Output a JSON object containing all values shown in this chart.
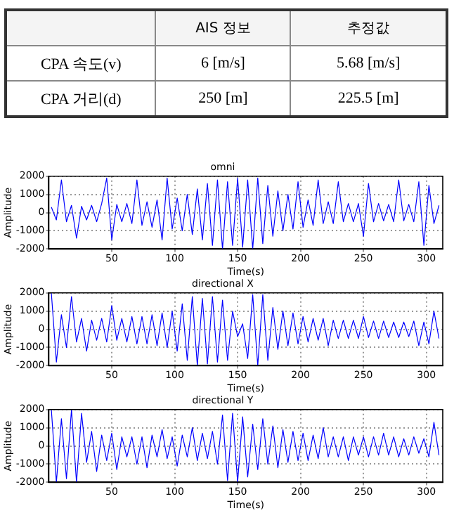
{
  "chart_data": [
    {
      "type": "other",
      "annotations": [
        "AIS 정보",
        "추정값",
        "CPA 속도(v)",
        "6 [m/s]",
        "5.68 [m/s]",
        "CPA 거리(d)",
        "250 [m]",
        "225.5 [m]"
      ]
    },
    {
      "type": "line",
      "title": "omni",
      "xlabel": "Time(s)",
      "ylabel": "Amplitude",
      "xlim": [
        0,
        313
      ],
      "xticks": [
        50,
        100,
        150,
        200,
        250,
        300
      ],
      "ylim": [
        -2000,
        2000
      ],
      "yticks": [
        -2000,
        -1000,
        0,
        1000,
        2000
      ],
      "grid": true,
      "x": [
        2,
        6,
        10,
        14,
        18,
        22,
        26,
        30,
        34,
        38,
        42,
        46,
        50,
        54,
        58,
        62,
        66,
        70,
        74,
        78,
        82,
        86,
        90,
        94,
        98,
        102,
        106,
        110,
        114,
        118,
        122,
        126,
        130,
        134,
        138,
        142,
        146,
        150,
        154,
        158,
        162,
        166,
        170,
        174,
        178,
        182,
        186,
        190,
        194,
        198,
        202,
        206,
        210,
        214,
        218,
        222,
        226,
        230,
        234,
        238,
        242,
        246,
        250,
        254,
        258,
        262,
        266,
        270,
        274,
        278,
        282,
        286,
        290,
        294,
        298,
        302,
        306,
        310
      ],
      "series": [
        {
          "color": "#0000ff",
          "values": [
            300,
            -400,
            1800,
            -500,
            400,
            -1400,
            350,
            -400,
            400,
            -500,
            500,
            1900,
            -1500,
            450,
            -500,
            500,
            -600,
            1800,
            -700,
            600,
            -800,
            700,
            -1500,
            1900,
            -900,
            800,
            -1000,
            1000,
            -1200,
            1300,
            -1500,
            1600,
            -1800,
            1800,
            -2000,
            1700,
            -1800,
            1900,
            -1900,
            1800,
            -2000,
            1900,
            -1700,
            1500,
            -1300,
            1200,
            -1000,
            1000,
            -900,
            1700,
            -800,
            700,
            -700,
            1800,
            -600,
            600,
            -600,
            1700,
            -500,
            500,
            -500,
            500,
            -1300,
            1600,
            -500,
            500,
            -450,
            450,
            -500,
            1800,
            -450,
            450,
            -500,
            1700,
            -1800,
            1500,
            -600,
            400
          ]
        }
      ]
    },
    {
      "type": "line",
      "title": "directional X",
      "xlabel": "Time(s)",
      "ylabel": "Amplitude",
      "xlim": [
        0,
        313
      ],
      "xticks": [
        50,
        100,
        150,
        200,
        250,
        300
      ],
      "ylim": [
        -2000,
        2000
      ],
      "yticks": [
        -2000,
        -1000,
        0,
        1000,
        2000
      ],
      "grid": true,
      "x": [
        2,
        6,
        10,
        14,
        18,
        22,
        26,
        30,
        34,
        38,
        42,
        46,
        50,
        54,
        58,
        62,
        66,
        70,
        74,
        78,
        82,
        86,
        90,
        94,
        98,
        102,
        106,
        110,
        114,
        118,
        122,
        126,
        130,
        134,
        138,
        142,
        146,
        150,
        154,
        158,
        162,
        166,
        170,
        174,
        178,
        182,
        186,
        190,
        194,
        198,
        202,
        206,
        210,
        214,
        218,
        222,
        226,
        230,
        234,
        238,
        242,
        246,
        250,
        254,
        258,
        262,
        266,
        270,
        274,
        278,
        282,
        286,
        290,
        294,
        298,
        302,
        306,
        310
      ],
      "series": [
        {
          "color": "#0000ff",
          "values": [
            2000,
            -1800,
            800,
            -1000,
            1800,
            -700,
            600,
            -1200,
            500,
            -600,
            600,
            -700,
            1300,
            -600,
            600,
            -700,
            700,
            -800,
            700,
            -800,
            800,
            -900,
            900,
            -1000,
            1000,
            -1200,
            1400,
            -1700,
            1800,
            -2000,
            1700,
            -1900,
            1800,
            -1800,
            1600,
            -1700,
            1000,
            -400,
            300,
            -1600,
            1900,
            -2000,
            1900,
            -1700,
            1200,
            -1100,
            1000,
            -900,
            900,
            -800,
            700,
            -700,
            600,
            -600,
            600,
            -900,
            500,
            -500,
            500,
            -500,
            500,
            -500,
            700,
            -450,
            450,
            -500,
            450,
            -450,
            400,
            -450,
            400,
            -400,
            450,
            -900,
            400,
            -800,
            1000,
            -500
          ]
        }
      ]
    },
    {
      "type": "line",
      "title": "directional Y",
      "xlabel": "Time(s)",
      "ylabel": "Amplitude",
      "xlim": [
        0,
        313
      ],
      "xticks": [
        50,
        100,
        150,
        200,
        250,
        300
      ],
      "ylim": [
        -2000,
        2000
      ],
      "yticks": [
        -2000,
        -1000,
        0,
        1000,
        2000
      ],
      "grid": true,
      "x": [
        2,
        6,
        10,
        14,
        18,
        22,
        26,
        30,
        34,
        38,
        42,
        46,
        50,
        54,
        58,
        62,
        66,
        70,
        74,
        78,
        82,
        86,
        90,
        94,
        98,
        102,
        106,
        110,
        114,
        118,
        122,
        126,
        130,
        134,
        138,
        142,
        146,
        150,
        154,
        158,
        162,
        166,
        170,
        174,
        178,
        182,
        186,
        190,
        194,
        198,
        202,
        206,
        210,
        214,
        218,
        222,
        226,
        230,
        234,
        238,
        242,
        246,
        250,
        254,
        258,
        262,
        266,
        270,
        274,
        278,
        282,
        286,
        290,
        294,
        298,
        302,
        306,
        310
      ],
      "series": [
        {
          "color": "#0000ff",
          "values": [
            2000,
            -2000,
            1500,
            -1800,
            2000,
            -2000,
            1800,
            -900,
            800,
            -1400,
            600,
            -800,
            700,
            -1300,
            500,
            -600,
            500,
            -1000,
            500,
            -1200,
            600,
            -600,
            900,
            -700,
            500,
            -1100,
            600,
            -600,
            1000,
            -800,
            700,
            -700,
            800,
            -1000,
            1700,
            -1900,
            1800,
            -2000,
            1600,
            -1700,
            1200,
            -1300,
            1500,
            -1000,
            1100,
            -1200,
            900,
            -900,
            800,
            -800,
            700,
            -800,
            600,
            -700,
            1000,
            -600,
            500,
            -600,
            500,
            -800,
            500,
            -500,
            500,
            -600,
            500,
            -500,
            700,
            -500,
            500,
            -600,
            400,
            -500,
            500,
            -400,
            400,
            -600,
            1300,
            -500
          ]
        }
      ]
    }
  ]
}
